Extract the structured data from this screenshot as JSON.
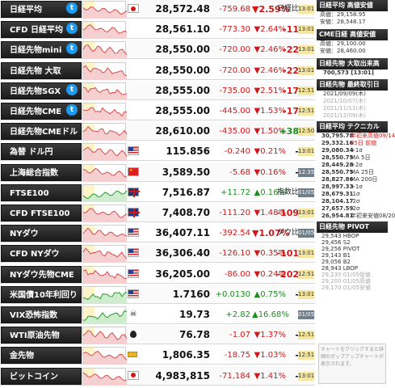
{
  "rows": [
    {
      "name": "日経平均",
      "tw": true,
      "flag": "jp",
      "price": "28,572.48",
      "change": "-759.68",
      "pct": "▼2.59%",
      "extra": "日経比",
      "extra_cls": "",
      "time": "13:01",
      "time_cls": "",
      "dir": "dn",
      "pct_big": true
    },
    {
      "name": "CFD 日経平均",
      "tw": true,
      "flag": "",
      "price": "28,561.10",
      "change": "-773.30",
      "pct": "▼2.64%",
      "extra": "-11",
      "extra_cls": "dn",
      "time": "13:01",
      "time_cls": "",
      "dir": "dn"
    },
    {
      "name": "日経先物mini",
      "tw": true,
      "flag": "",
      "price": "28,550.00",
      "change": "-720.00",
      "pct": "▼2.46%",
      "extra": "-22",
      "extra_cls": "dn",
      "time": "13:01",
      "time_cls": "",
      "dir": "dn"
    },
    {
      "name": "日経先物 大取",
      "tw": false,
      "flag": "",
      "price": "28,550.00",
      "change": "-720.00",
      "pct": "▼2.46%",
      "extra": "-22",
      "extra_cls": "dn",
      "time": "13:01",
      "time_cls": "",
      "dir": "dn"
    },
    {
      "name": "日経先物SGX",
      "tw": true,
      "flag": "",
      "price": "28,555.00",
      "change": "-735.00",
      "pct": "▼2.51%",
      "extra": "-17",
      "extra_cls": "dn",
      "time": "12:51",
      "time_cls": "",
      "dir": "dn"
    },
    {
      "name": "日経先物CME",
      "tw": true,
      "flag": "",
      "price": "28,555.00",
      "change": "-445.00",
      "pct": "▼1.53%",
      "extra": "-17",
      "extra_cls": "dn",
      "time": "12:51",
      "time_cls": "",
      "dir": "dn"
    },
    {
      "name": "日経先物CMEドル",
      "tw": false,
      "flag": "",
      "price": "28,610.00",
      "change": "-435.00",
      "pct": "▼1.50%",
      "extra": "+38",
      "extra_cls": "up",
      "time": "12:50",
      "time_cls": "",
      "dir": "dn"
    },
    {
      "name": "為替 ドル円",
      "tw": false,
      "flag": "us",
      "price": "115.856",
      "change": "-0.240",
      "pct": "▼0.21%",
      "extra": "-",
      "extra_cls": "",
      "time": "13:01",
      "time_cls": "",
      "dir": "dn"
    },
    {
      "name": "上海総合指数",
      "tw": false,
      "flag": "cn",
      "price": "3,589.50",
      "change": "-5.68",
      "pct": "▼0.16%",
      "extra": "-",
      "extra_cls": "",
      "time": "12:35",
      "time_cls": "g",
      "dir": "dn"
    },
    {
      "name": "FTSE100",
      "tw": false,
      "flag": "uk",
      "price": "7,516.87",
      "change": "+11.72",
      "pct": "▲0.16%",
      "extra": "指数比",
      "extra_cls": "",
      "time": "01/05",
      "time_cls": "g",
      "dir": "up"
    },
    {
      "name": "CFD FTSE100",
      "tw": false,
      "flag": "uk",
      "price": "7,408.70",
      "change": "-111.20",
      "pct": "▼1.48%",
      "extra": "-109",
      "extra_cls": "dn",
      "time": "13:01",
      "time_cls": "",
      "dir": "dn"
    },
    {
      "name": "NYダウ",
      "tw": false,
      "flag": "us",
      "price": "36,407.11",
      "change": "-392.54",
      "pct": "▼1.07%",
      "extra": "ダウ比",
      "extra_cls": "",
      "time": "01/05",
      "time_cls": "g",
      "dir": "dn",
      "pct_big": true
    },
    {
      "name": "CFD NYダウ",
      "tw": false,
      "flag": "us",
      "price": "36,306.40",
      "change": "-126.10",
      "pct": "▼0.35%",
      "extra": "-101",
      "extra_cls": "dn",
      "time": "13:01",
      "time_cls": "",
      "dir": "dn"
    },
    {
      "name": "NYダウ先物CME",
      "tw": false,
      "flag": "us",
      "price": "36,205.00",
      "change": "-86.00",
      "pct": "▼0.24%",
      "extra": "-202",
      "extra_cls": "dn",
      "time": "12:51",
      "time_cls": "",
      "dir": "dn"
    },
    {
      "name": "米国債10年利回り",
      "tw": false,
      "flag": "us",
      "price": "1.7160",
      "change": "+0.0130",
      "pct": "▲0.75%",
      "extra": "-",
      "extra_cls": "",
      "time": "13:01",
      "time_cls": "",
      "dir": "up"
    },
    {
      "name": "VIX恐怖指数",
      "tw": false,
      "flag": "vix",
      "price": "19.73",
      "change": "+2.82",
      "pct": "▲16.68%",
      "extra": "",
      "extra_cls": "",
      "time": "01/05",
      "time_cls": "g",
      "dir": "up"
    },
    {
      "name": "WTI原油先物",
      "tw": false,
      "flag": "oil",
      "price": "76.78",
      "change": "-1.07",
      "pct": "▼1.37%",
      "extra": "-",
      "extra_cls": "",
      "time": "12:51",
      "time_cls": "",
      "dir": "dn"
    },
    {
      "name": "金先物",
      "tw": false,
      "flag": "gold",
      "price": "1,806.35",
      "change": "-18.75",
      "pct": "▼1.03%",
      "extra": "-",
      "extra_cls": "",
      "time": "12:51",
      "time_cls": "",
      "dir": "dn"
    },
    {
      "name": "ビットコイン",
      "tw": false,
      "flag": "jp",
      "price": "4,983,815",
      "change": "-71,184",
      "pct": "▼1.41%",
      "extra": "-",
      "extra_cls": "",
      "time": "13:01",
      "time_cls": "",
      "dir": "dn"
    }
  ],
  "panel": {
    "h1": "日経平均 高値安値",
    "h1_hi": "高値：29,158.95",
    "h1_lo": "安値：28,548.17",
    "h2": "CME日経 高値安値",
    "h2_hi": "高値：29,100.00",
    "h2_lo": "安値：28,460.00",
    "h3": "日経先物 大取出来高",
    "h3_vol": "700,573 [13:01]",
    "h4": "日経先物 最終取引日",
    "h4_dates": [
      "2021/09/09(木)",
      "2021/10/07(木)",
      "2021/11/11(木)",
      "2021/12/09(木)"
    ],
    "h5": "日経平均 テクニカル",
    "tech": [
      {
        "v": "30,795.78",
        "l": "年初来高値09/14",
        "r": true
      },
      {
        "v": "29,332.16",
        "l": "05日 前値",
        "r": true
      },
      {
        "v": "29,080.34",
        "l": "+1σ",
        "r": false
      },
      {
        "v": "28,550.75",
        "l": "MA 5日",
        "r": false
      },
      {
        "v": "28,449.28",
        "l": "+2σ",
        "r": false
      },
      {
        "v": "28,550.75",
        "l": "MA 25日",
        "r": false
      },
      {
        "v": "28,827.86",
        "l": "MA 200日",
        "r": false
      },
      {
        "v": "28,997.33",
        "l": "+1σ",
        "r": false
      },
      {
        "v": "28,679.31",
        "l": "-1σ",
        "r": false
      },
      {
        "v": "28,104.17",
        "l": "-2σ",
        "r": false
      },
      {
        "v": "27,657.59",
        "l": "-2σ",
        "r": false
      },
      {
        "v": "26,954.81",
        "l": "年初来安値08/20",
        "r": false
      }
    ],
    "h6": "日経先物 PIVOT",
    "pivot": [
      {
        "t": "29,543 HBOP",
        "dim": false
      },
      {
        "t": "29,456 S2",
        "dim": false
      },
      {
        "t": "29,256 PIVOT",
        "dim": false
      },
      {
        "t": "29,143 B1",
        "dim": false
      },
      {
        "t": "29,056 B2",
        "dim": false
      },
      {
        "t": "28,943 LBOP",
        "dim": false
      },
      {
        "t": "29,230 01/05始値",
        "dim": true
      },
      {
        "t": "29,200 01/05高値",
        "dim": true
      },
      {
        "t": "29,170 01/05安値",
        "dim": true
      }
    ],
    "note": "チャートをクリックすると詳細のポップアップチャートが表示されます。"
  }
}
